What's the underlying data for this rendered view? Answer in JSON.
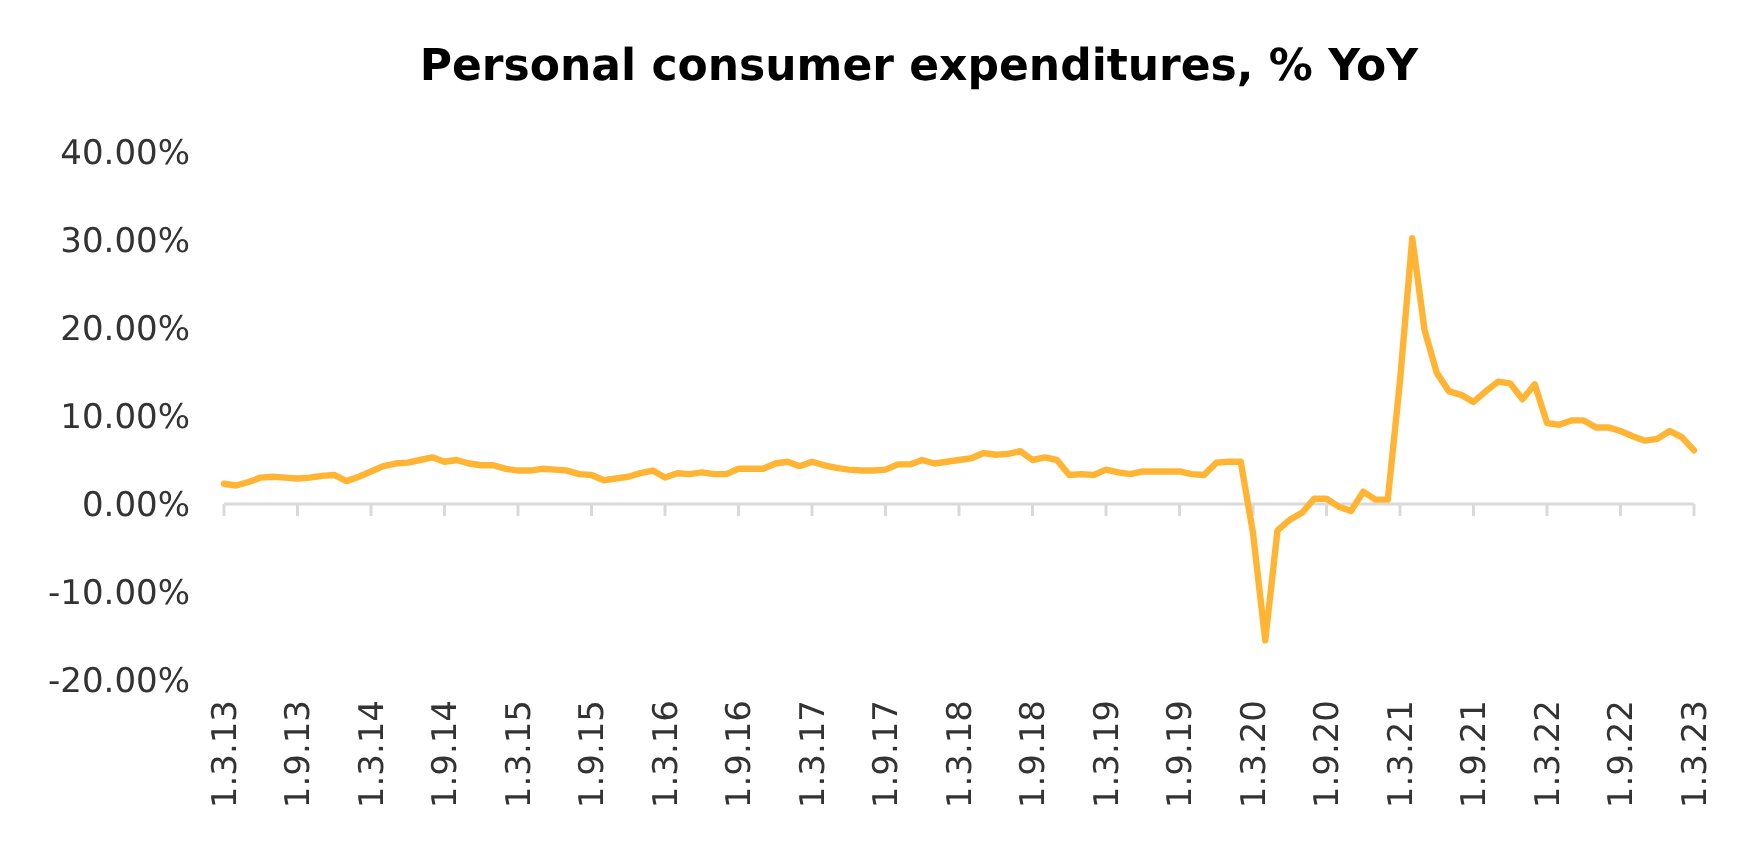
{
  "chart_data": {
    "type": "line",
    "title": "Personal consumer expenditures, % YoY",
    "categories": [
      "1.3.13",
      null,
      null,
      null,
      null,
      null,
      "1.9.13",
      null,
      null,
      null,
      null,
      null,
      "1.3.14",
      null,
      null,
      null,
      null,
      null,
      "1.9.14",
      null,
      null,
      null,
      null,
      null,
      "1.3.15",
      null,
      null,
      null,
      null,
      null,
      "1.9.15",
      null,
      null,
      null,
      null,
      null,
      "1.3.16",
      null,
      null,
      null,
      null,
      null,
      "1.9.16",
      null,
      null,
      null,
      null,
      null,
      "1.3.17",
      null,
      null,
      null,
      null,
      null,
      "1.9.17",
      null,
      null,
      null,
      null,
      null,
      "1.3.18",
      null,
      null,
      null,
      null,
      null,
      "1.9.18",
      null,
      null,
      null,
      null,
      null,
      "1.3.19",
      null,
      null,
      null,
      null,
      null,
      "1.9.19",
      null,
      null,
      null,
      null,
      null,
      "1.3.20",
      null,
      null,
      null,
      null,
      null,
      "1.9.20",
      null,
      null,
      null,
      null,
      null,
      "1.3.21",
      null,
      null,
      null,
      null,
      null,
      "1.9.21",
      null,
      null,
      null,
      null,
      null,
      "1.3.22",
      null,
      null,
      null,
      null,
      null,
      "1.9.22",
      null,
      null,
      null,
      null,
      null,
      "1.3.23"
    ],
    "series": [
      {
        "color": "#ffb533",
        "values": [
          2.3,
          2.1,
          2.5,
          3.0,
          3.1,
          3.0,
          2.9,
          3.0,
          3.2,
          3.3,
          2.6,
          3.1,
          3.7,
          4.3,
          4.6,
          4.7,
          5.0,
          5.3,
          4.8,
          5.0,
          4.6,
          4.4,
          4.4,
          4.0,
          3.8,
          3.8,
          4.0,
          3.9,
          3.8,
          3.4,
          3.3,
          2.7,
          2.9,
          3.1,
          3.5,
          3.8,
          3.0,
          3.5,
          3.4,
          3.6,
          3.4,
          3.4,
          4.0,
          4.0,
          4.0,
          4.6,
          4.8,
          4.3,
          4.8,
          4.4,
          4.1,
          3.9,
          3.8,
          3.8,
          3.9,
          4.5,
          4.5,
          5.0,
          4.6,
          4.8,
          5.0,
          5.2,
          5.8,
          5.6,
          5.7,
          6.0,
          5.0,
          5.3,
          5.0,
          3.3,
          3.4,
          3.3,
          3.9,
          3.6,
          3.4,
          3.7,
          3.7,
          3.7,
          3.7,
          3.4,
          3.3,
          4.7,
          4.8,
          4.8,
          -3.3,
          -15.5,
          -3.0,
          -1.8,
          -1.0,
          0.6,
          0.6,
          -0.3,
          -0.8,
          1.4,
          0.5,
          0.5,
          14.0,
          30.2,
          19.8,
          14.9,
          12.8,
          12.4,
          11.6,
          12.8,
          13.9,
          13.7,
          11.9,
          13.6,
          9.2,
          9.0,
          9.5,
          9.5,
          8.7,
          8.7,
          8.3,
          7.7,
          7.2,
          7.4,
          8.3,
          7.6,
          6.1
        ]
      }
    ],
    "ylim": [
      -20,
      40
    ],
    "yticks": [
      {
        "value": -20,
        "label": "-20.00%"
      },
      {
        "value": -10,
        "label": "-10.00%"
      },
      {
        "value": 0,
        "label": "0.00%"
      },
      {
        "value": 10,
        "label": "10.00%"
      },
      {
        "value": 20,
        "label": "20.00%"
      },
      {
        "value": 30,
        "label": "30.00%"
      },
      {
        "value": 40,
        "label": "40.00%"
      }
    ],
    "marker": "none",
    "line_style": "solid"
  }
}
